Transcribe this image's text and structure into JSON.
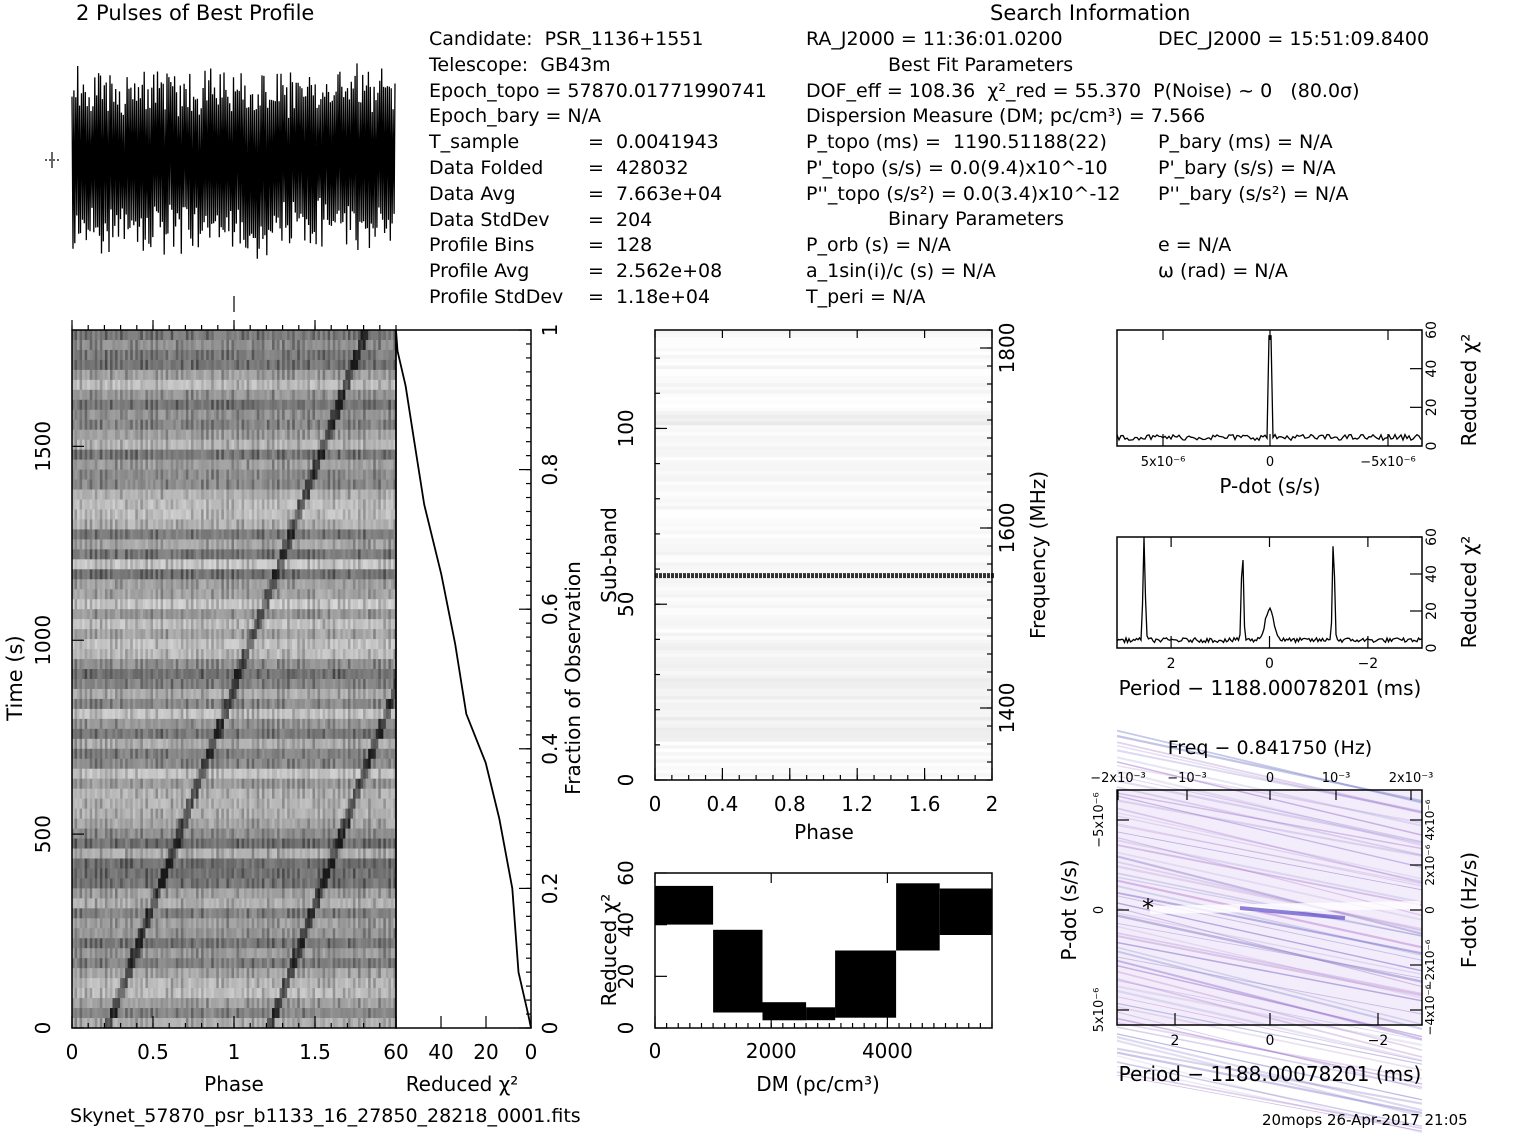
{
  "title": "2 Pulses of Best Profile",
  "search_header": "Search Information",
  "info_left": [
    [
      "Candidate:  PSR_1136+1551",
      ""
    ],
    [
      "Telescope:  GB43m",
      ""
    ],
    [
      "Epoch_topo = 57870.01771990741",
      ""
    ],
    [
      "Epoch_bary = N/A",
      ""
    ],
    [
      "T_sample",
      "=  0.0041943"
    ],
    [
      "Data Folded",
      "=  428032"
    ],
    [
      "Data Avg",
      "=  7.663e+04"
    ],
    [
      "Data StdDev",
      "=  204"
    ],
    [
      "Profile Bins",
      "=  128"
    ],
    [
      "Profile Avg",
      "=  2.562e+08"
    ],
    [
      "Profile StdDev",
      "=  1.18e+04"
    ]
  ],
  "info_mid": [
    "RA_J2000 = 11:36:01.0200",
    "DOF_eff = 108.36  χ²_red = 55.370  P(Noise) ~ 0   (80.0σ)",
    "Dispersion Measure (DM; pc/cm³) = 7.566",
    "P_topo (ms) =  1190.51188(22)",
    "P'_topo (s/s) = 0.0(9.4)x10^-10",
    "P''_topo (s/s²) = 0.0(3.4)x10^-12",
    "P_orb (s) = N/A",
    "a_1sin(i)/c (s) = N/A",
    "T_peri = N/A"
  ],
  "info_right": [
    "DEC_J2000 = 15:51:09.8400",
    "P_bary (ms) = N/A",
    "P'_bary (s/s) = N/A",
    "P''_bary (s/s²) = N/A",
    "e = N/A",
    "ω (rad) = N/A"
  ],
  "best_fit_header": "Best Fit Parameters",
  "binary_header": "Binary Parameters",
  "footer_file": "Skynet_57870_psr_b1133_16_27850_28218_0001.fits",
  "footer_stamp": "20mops 26-Apr-2017 21:05",
  "chart_data": [
    {
      "type": "line",
      "title": "2 Pulses of Best Profile",
      "note": "pulse profile, 2 rotations, noisy oscillation",
      "x_range": [
        0,
        2
      ]
    },
    {
      "type": "heatmap",
      "xlabel": "Phase",
      "ylabel": "Time (s)",
      "xlim": [
        0,
        2
      ],
      "ylim": [
        0,
        1800
      ],
      "x_ticks": [
        "0",
        "0.5",
        "1",
        "1.5"
      ],
      "y_ticks": [
        "0",
        "500",
        "1000",
        "1500"
      ]
    },
    {
      "type": "line",
      "xlabel": "Reduced χ²",
      "ylabel": "Fraction of Observation",
      "xlim": [
        60,
        0
      ],
      "ylim": [
        0,
        1
      ],
      "x_ticks": [
        "60",
        "40",
        "20",
        "0"
      ],
      "y_ticks": [
        "0",
        "0.2",
        "0.4",
        "0.6",
        "0.8",
        "1"
      ],
      "points": [
        [
          0,
          0
        ],
        [
          2,
          0.02
        ],
        [
          5,
          0.08
        ],
        [
          9,
          0.2
        ],
        [
          14,
          0.3
        ],
        [
          20,
          0.38
        ],
        [
          28,
          0.45
        ],
        [
          34,
          0.55
        ],
        [
          40,
          0.65
        ],
        [
          47,
          0.75
        ],
        [
          52,
          0.84
        ],
        [
          56,
          0.92
        ],
        [
          59,
          0.97
        ],
        [
          60,
          1.0
        ]
      ]
    },
    {
      "type": "heatmap",
      "xlabel": "Phase",
      "ylabel": "Sub-band",
      "y2label": "Frequency (MHz)",
      "xlim": [
        0,
        2
      ],
      "ylim": [
        0,
        128
      ],
      "x_ticks": [
        "0",
        "0.4",
        "0.8",
        "1.2",
        "1.6",
        "2"
      ],
      "y_ticks": [
        "0",
        "50",
        "100"
      ],
      "y2_ticks": [
        "1400",
        "1600",
        "1800"
      ],
      "bright_band_subband": 58
    },
    {
      "type": "line",
      "xlabel": "DM (pc/cm³)",
      "ylabel": "Reduced χ²",
      "xlim": [
        0,
        5800
      ],
      "ylim": [
        0,
        60
      ],
      "x_ticks": [
        "0",
        "2000",
        "4000"
      ],
      "y_ticks": [
        "0",
        "20",
        "40",
        "60"
      ],
      "segments": [
        {
          "x": [
            0,
            1000
          ],
          "low": 40,
          "high": 55
        },
        {
          "x": [
            1000,
            1850
          ],
          "low": 6,
          "high": 38
        },
        {
          "x": [
            1850,
            2600
          ],
          "low": 3,
          "high": 10
        },
        {
          "x": [
            2600,
            3100
          ],
          "low": 3,
          "high": 8
        },
        {
          "x": [
            3100,
            3950
          ],
          "low": 4,
          "high": 30
        },
        {
          "x": [
            3950,
            4150
          ],
          "low": 4,
          "high": 30
        },
        {
          "x": [
            4150,
            4900
          ],
          "low": 30,
          "high": 56
        },
        {
          "x": [
            4900,
            5800
          ],
          "low": 36,
          "high": 54
        }
      ]
    },
    {
      "type": "line",
      "xlabel": "P-dot (s/s)",
      "ylabel": "Reduced χ²",
      "x_ticks": [
        "5x10⁻⁶",
        "0",
        "−5x10⁻⁶"
      ],
      "y_ticks": [
        "0",
        "20",
        "40",
        "60"
      ],
      "ylim": [
        0,
        60
      ],
      "peak": {
        "x": 0,
        "y": 57
      },
      "baseline": 3
    },
    {
      "type": "line",
      "xlabel": "Period − 1188.00078201 (ms)",
      "ylabel": "Reduced χ²",
      "x_ticks": [
        "2",
        "0",
        "−2"
      ],
      "y_ticks": [
        "0",
        "20",
        "40",
        "60"
      ],
      "ylim": [
        0,
        60
      ],
      "xlim": [
        3.1,
        -3.1
      ],
      "peaks": [
        {
          "x": 2.55,
          "y": 57
        },
        {
          "x": 0.55,
          "y": 50
        },
        {
          "x": 0,
          "y": 17
        },
        {
          "x": -1.3,
          "y": 56
        }
      ],
      "baseline": 3
    },
    {
      "type": "heatmap",
      "title": "Freq − 0.841750 (Hz)",
      "xlabel": "Period − 1188.00078201 (ms)",
      "ylabel": "P-dot (s/s)",
      "y2label": "F-dot (Hz/s)",
      "x_ticks": [
        "2",
        "0",
        "−2"
      ],
      "x2_ticks": [
        "−2x10⁻³",
        "−10⁻³",
        "0",
        "10⁻³",
        "2x10⁻³"
      ],
      "y_ticks": [
        "5x10⁻⁶",
        "0",
        "−5x10⁻⁶"
      ],
      "y2_ticks": [
        "−4x10⁻⁶",
        "−2x10⁻⁶",
        "0",
        "2x10⁻⁶",
        "4x10⁻⁶"
      ],
      "best_marker": {
        "period_offset_ms": 2.5,
        "pdot": 0
      }
    }
  ]
}
